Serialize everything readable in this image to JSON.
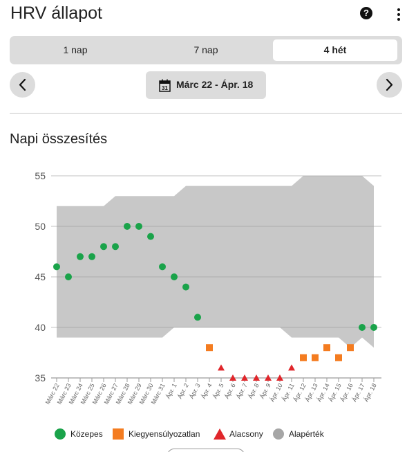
{
  "header": {
    "title": "HRV állapot",
    "help_icon": "question-circle-icon",
    "more_icon": "more-vertical-icon"
  },
  "range_tabs": [
    {
      "label": "1 nap",
      "selected": false
    },
    {
      "label": "7 nap",
      "selected": false
    },
    {
      "label": "4 hét",
      "selected": true
    }
  ],
  "date_nav": {
    "prev_icon": "chevron-left-icon",
    "next_icon": "chevron-right-icon",
    "calendar_icon": "calendar-icon",
    "calendar_day": "31",
    "label": "Márc 22 - Ápr. 18"
  },
  "section_title": "Napi összesítés",
  "legend": [
    {
      "label": "Közepes",
      "shape": "circle",
      "color": "#1aa34a"
    },
    {
      "label": "Kiegyensúlyozatlan",
      "shape": "square",
      "color": "#f47c20"
    },
    {
      "label": "Alacsony",
      "shape": "triangle",
      "color": "#e0262b"
    },
    {
      "label": "Alapérték",
      "shape": "circle",
      "color": "#a6a6a6"
    }
  ],
  "chart_data": {
    "type": "scatter",
    "ylim": [
      35,
      55
    ],
    "yticks": [
      35,
      40,
      45,
      50,
      55
    ],
    "grid": true,
    "categories": [
      "Márc 22",
      "Márc 23",
      "Márc 24",
      "Márc 25",
      "Márc 26",
      "Márc 27",
      "Márc 28",
      "Márc 29",
      "Márc 30",
      "Márc 31",
      "Ápr. 1",
      "Ápr. 2",
      "Ápr. 3",
      "Ápr. 4",
      "Ápr. 5",
      "Ápr. 6",
      "Ápr. 7",
      "Ápr. 8",
      "Ápr. 9",
      "Ápr. 10",
      "Ápr. 11",
      "Ápr. 12",
      "Ápr. 13",
      "Ápr. 14",
      "Ápr. 15",
      "Ápr. 16",
      "Ápr. 17",
      "Ápr. 18"
    ],
    "values": [
      46,
      45,
      47,
      47,
      48,
      48,
      50,
      50,
      49,
      46,
      45,
      44,
      41,
      38,
      36,
      35,
      35,
      35,
      35,
      35,
      36,
      37,
      37,
      38,
      37,
      38,
      40,
      40
    ],
    "status": [
      "Közepes",
      "Közepes",
      "Közepes",
      "Közepes",
      "Közepes",
      "Közepes",
      "Közepes",
      "Közepes",
      "Közepes",
      "Közepes",
      "Közepes",
      "Közepes",
      "Közepes",
      "Kiegyensúlyozatlan",
      "Alacsony",
      "Alacsony",
      "Alacsony",
      "Alacsony",
      "Alacsony",
      "Alacsony",
      "Alacsony",
      "Kiegyensúlyozatlan",
      "Kiegyensúlyozatlan",
      "Kiegyensúlyozatlan",
      "Kiegyensúlyozatlan",
      "Kiegyensúlyozatlan",
      "Közepes",
      "Közepes"
    ],
    "baseline_upper": [
      52,
      52,
      52,
      52,
      52,
      53,
      53,
      53,
      53,
      53,
      53,
      54,
      54,
      54,
      54,
      54,
      54,
      54,
      54,
      54,
      54,
      55,
      55,
      55,
      55,
      55,
      55,
      54
    ],
    "baseline_lower": [
      39,
      39,
      39,
      39,
      39,
      39,
      39,
      39,
      39,
      39,
      40,
      40,
      40,
      40,
      40,
      40,
      40,
      40,
      40,
      40,
      39,
      39,
      39,
      39,
      39,
      38,
      39,
      38
    ],
    "colors": {
      "Közepes": "#1aa34a",
      "Kiegyensúlyozatlan": "#f47c20",
      "Alacsony": "#e0262b",
      "Alapérték": "#c8c8c8"
    }
  }
}
